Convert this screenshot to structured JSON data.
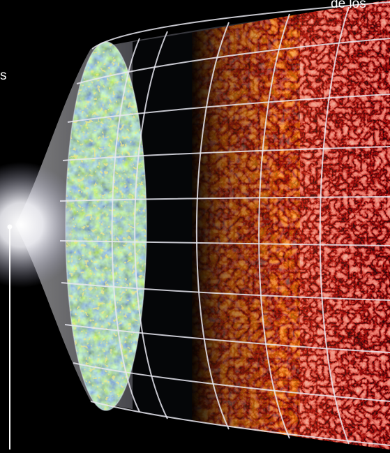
{
  "labels": {
    "top_fragment": "de los",
    "mid_fragment": "s"
  },
  "colors": {
    "background": "#000000",
    "grid": "#e8e8f0",
    "cmb_blue": "#2a6fb0",
    "cmb_green": "#3aa07a",
    "cmb_yellow": "#d8c84a",
    "dark_ages": "#050608",
    "early_structure": "#e0661a",
    "cosmic_web": "#c0302a",
    "envelope": "#b8b8d8",
    "big_bang_glow": "#ffffff"
  },
  "diagram": {
    "components": [
      "big-bang-flare",
      "cmb-surface",
      "dark-ages",
      "first-structures",
      "cosmic-web",
      "spacetime-grid",
      "timeline-marker"
    ]
  }
}
